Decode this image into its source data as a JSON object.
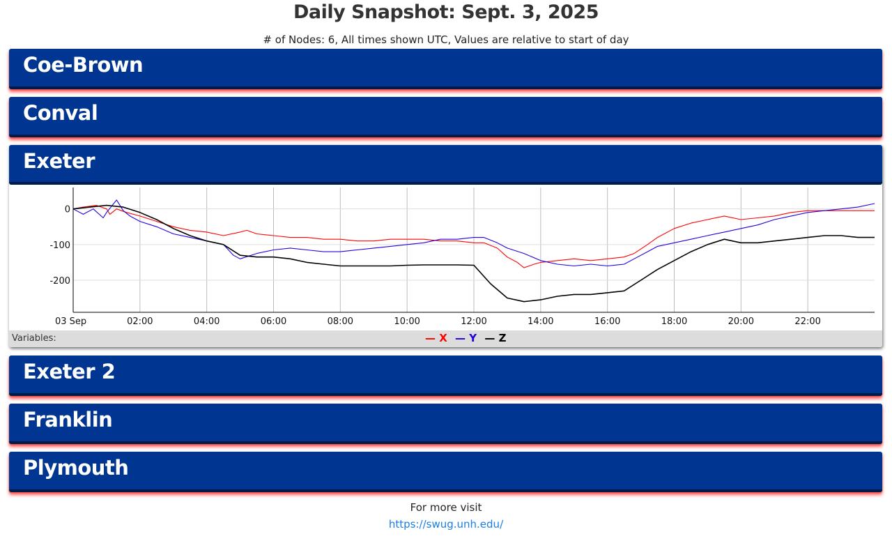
{
  "header": {
    "title": "Daily Snapshot: Sept. 3, 2025",
    "subtitle": "# of Nodes: 6, All times shown UTC, Values are relative to start of day"
  },
  "nodes": [
    {
      "name": "Coe-Brown",
      "expanded": false
    },
    {
      "name": "Conval",
      "expanded": false
    },
    {
      "name": "Exeter",
      "expanded": true
    },
    {
      "name": "Exeter 2",
      "expanded": false
    },
    {
      "name": "Franklin",
      "expanded": false
    },
    {
      "name": "Plymouth",
      "expanded": false
    }
  ],
  "legend": {
    "label": "Variables:",
    "items": [
      {
        "symbol": "—",
        "name": "X",
        "color": "#ff0000"
      },
      {
        "symbol": "—",
        "name": "Y",
        "color": "#2200dd"
      },
      {
        "symbol": "—",
        "name": "Z",
        "color": "#000000"
      }
    ]
  },
  "footer": {
    "text": "For more visit",
    "link": "https://swug.unh.edu/"
  },
  "chart_data": {
    "type": "line",
    "title": "",
    "xlabel": "",
    "ylabel": "",
    "x_tick_labels": [
      "03 Sep",
      "02:00",
      "04:00",
      "06:00",
      "08:00",
      "10:00",
      "12:00",
      "14:00",
      "16:00",
      "18:00",
      "20:00",
      "22:00"
    ],
    "x_ticks_hours": [
      0,
      2,
      4,
      6,
      8,
      10,
      12,
      14,
      16,
      18,
      20,
      22
    ],
    "xlim_hours": [
      0,
      24
    ],
    "y_tick_labels": [
      "0",
      "-100",
      "-200"
    ],
    "y_ticks": [
      0,
      -100,
      -200
    ],
    "ylim": [
      -290,
      60
    ],
    "grid": true,
    "series": [
      {
        "name": "X",
        "color": "#ff0000",
        "x": [
          0,
          0.3,
          0.7,
          1.0,
          1.1,
          1.3,
          1.6,
          2.0,
          2.5,
          3.0,
          3.5,
          4.0,
          4.5,
          5.0,
          5.2,
          5.5,
          6.0,
          6.5,
          7.0,
          7.5,
          8.0,
          8.5,
          9.0,
          9.5,
          10.0,
          10.5,
          11.0,
          11.5,
          12.0,
          12.3,
          12.7,
          13.0,
          13.3,
          13.5,
          13.8,
          14.0,
          14.5,
          15.0,
          15.5,
          16.0,
          16.5,
          16.8,
          17.2,
          17.5,
          18.0,
          18.5,
          19.0,
          19.5,
          20.0,
          20.5,
          21.0,
          21.5,
          22.0,
          22.5,
          23.0,
          23.5,
          24.0
        ],
        "y": [
          0,
          5,
          10,
          0,
          -15,
          0,
          -10,
          -20,
          -35,
          -50,
          -60,
          -65,
          -75,
          -65,
          -60,
          -70,
          -75,
          -80,
          -80,
          -85,
          -85,
          -90,
          -90,
          -85,
          -85,
          -85,
          -90,
          -90,
          -95,
          -95,
          -110,
          -135,
          -150,
          -165,
          -155,
          -150,
          -145,
          -140,
          -145,
          -140,
          -135,
          -125,
          -100,
          -80,
          -55,
          -40,
          -30,
          -20,
          -30,
          -25,
          -20,
          -10,
          -5,
          -5,
          -5,
          -5,
          -5
        ]
      },
      {
        "name": "Y",
        "color": "#2200dd",
        "x": [
          0,
          0.3,
          0.6,
          0.9,
          1.0,
          1.3,
          1.5,
          1.7,
          2.0,
          2.5,
          3.0,
          3.5,
          4.0,
          4.5,
          4.8,
          5.0,
          5.5,
          6.0,
          6.5,
          7.0,
          7.5,
          8.0,
          8.5,
          9.0,
          9.5,
          10.0,
          10.5,
          11.0,
          11.5,
          12.0,
          12.3,
          12.7,
          13.0,
          13.5,
          14.0,
          14.5,
          15.0,
          15.5,
          16.0,
          16.5,
          16.8,
          17.2,
          17.5,
          18.0,
          18.5,
          19.0,
          19.5,
          20.0,
          20.5,
          21.0,
          21.5,
          22.0,
          22.5,
          23.0,
          23.5,
          24.0
        ],
        "y": [
          0,
          -15,
          0,
          -25,
          -10,
          25,
          -5,
          -20,
          -35,
          -50,
          -70,
          -80,
          -90,
          -100,
          -130,
          -140,
          -125,
          -115,
          -110,
          -115,
          -120,
          -120,
          -115,
          -110,
          -105,
          -100,
          -95,
          -85,
          -85,
          -80,
          -80,
          -95,
          -110,
          -125,
          -145,
          -155,
          -160,
          -155,
          -160,
          -155,
          -140,
          -120,
          -105,
          -95,
          -85,
          -75,
          -65,
          -55,
          -45,
          -30,
          -20,
          -10,
          -5,
          0,
          5,
          15
        ]
      },
      {
        "name": "Z",
        "color": "#000000",
        "x": [
          0,
          0.5,
          1.0,
          1.5,
          2.0,
          2.5,
          3.0,
          3.5,
          4.0,
          4.5,
          5.0,
          5.5,
          6.0,
          6.5,
          7.0,
          7.5,
          8.0,
          8.5,
          9.0,
          9.5,
          10.0,
          10.5,
          11.0,
          11.5,
          12.0,
          12.5,
          13.0,
          13.5,
          14.0,
          14.5,
          15.0,
          15.5,
          16.0,
          16.5,
          17.0,
          17.5,
          18.0,
          18.5,
          19.0,
          19.5,
          20.0,
          20.5,
          21.0,
          21.5,
          22.0,
          22.5,
          23.0,
          23.5,
          24.0
        ],
        "y": [
          0,
          5,
          10,
          5,
          -10,
          -30,
          -55,
          -75,
          -90,
          -100,
          -130,
          -135,
          -135,
          -140,
          -150,
          -155,
          -160,
          -160,
          -160,
          -160,
          -158,
          -157,
          -157,
          -157,
          -158,
          -210,
          -250,
          -260,
          -255,
          -245,
          -240,
          -240,
          -235,
          -230,
          -200,
          -170,
          -145,
          -120,
          -100,
          -85,
          -95,
          -95,
          -90,
          -85,
          -80,
          -75,
          -75,
          -80,
          -80
        ]
      }
    ]
  }
}
